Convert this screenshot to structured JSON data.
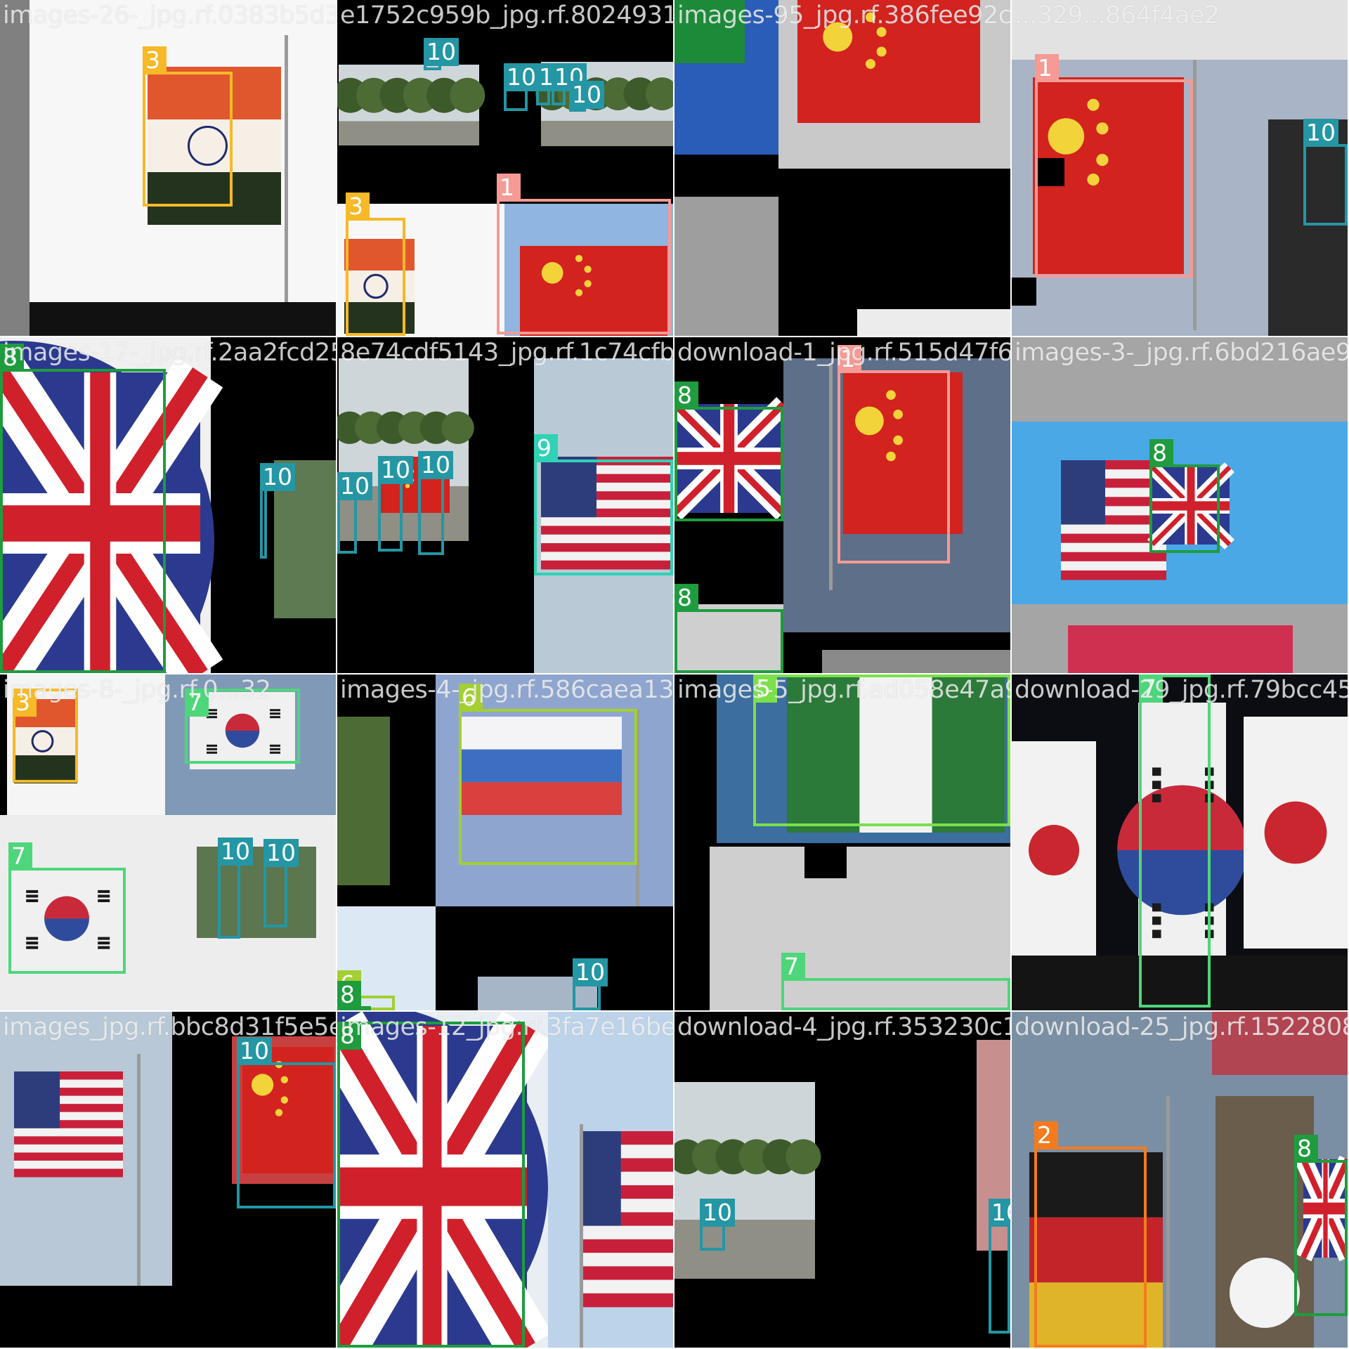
{
  "tiles": [
    {
      "filename": "images-26-_jpg.rf.0383b5d3"
    },
    {
      "filename": "e1752c959b_jpg.rf.802493130a5ec9854c6f"
    },
    {
      "filename": "images-95_jpg.rf.386fee92ca"
    },
    {
      "filename": "...329...864f4ae2"
    },
    {
      "filename": "images-17-_jpg.rf.2aa2fcd25"
    },
    {
      "filename": "8e74cdf5143_jpg.rf.1c74cfb4b2e13005"
    },
    {
      "filename": "download-1_jpg.rf.515d47f6"
    },
    {
      "filename": "images-3-_jpg.rf.6bd216ae9"
    },
    {
      "filename": "images-8-_jpg.rf.0...32"
    },
    {
      "filename": "images-4-_jpg.rf.586caea13"
    },
    {
      "filename": "images-5_jpg.rf.ad058e47a9"
    },
    {
      "filename": "download-29_jpg.rf.79bcc45"
    },
    {
      "filename": "images_jpg.rf.bbc8d31f5e5e"
    },
    {
      "filename": "images-12_jpg.rf.3fa7e16be"
    },
    {
      "filename": "download-4_jpg.rf.353230c10"
    },
    {
      "filename": "download-25_jpg.rf.1522808"
    }
  ],
  "classes": {
    "1": {
      "label": "1",
      "color": "#f59a94"
    },
    "2": {
      "label": "2",
      "color": "#f37b1d"
    },
    "3": {
      "label": "3",
      "color": "#f7b928"
    },
    "5": {
      "label": "5",
      "color": "#7be04a"
    },
    "6": {
      "label": "6",
      "color": "#a3cf30"
    },
    "7": {
      "label": "7",
      "color": "#4ed67a"
    },
    "8": {
      "label": "8",
      "color": "#1e9c3e"
    },
    "9": {
      "label": "9",
      "color": "#2fd2b4"
    },
    "10": {
      "label": "10",
      "color": "#2496a4"
    }
  }
}
